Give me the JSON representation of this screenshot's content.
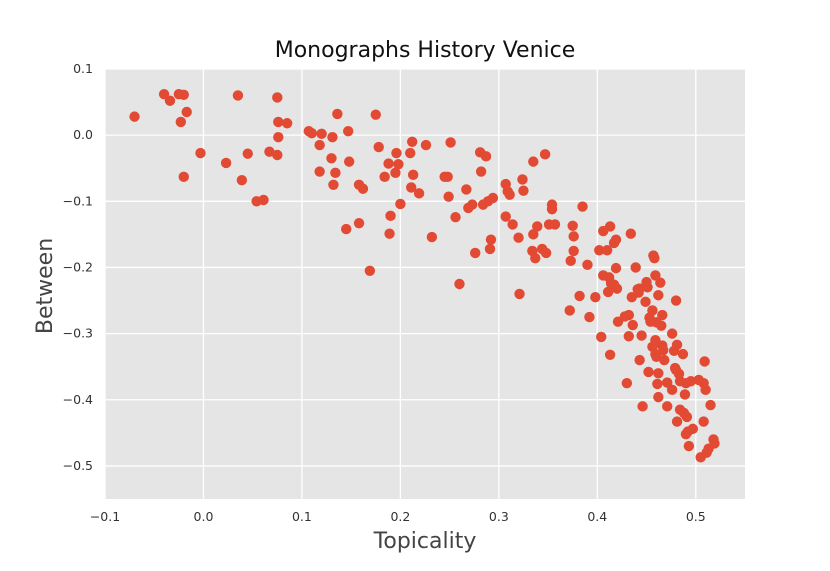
{
  "chart_data": {
    "type": "scatter",
    "title": "Monographs History Venice",
    "xlabel": "Topicality",
    "ylabel": "Between",
    "xlim": [
      -0.1,
      0.55
    ],
    "ylim": [
      -0.55,
      0.1
    ],
    "xticks": [
      -0.1,
      0.0,
      0.1,
      0.2,
      0.3,
      0.4,
      0.5
    ],
    "xtick_labels": [
      "−0.1",
      "0.0",
      "0.1",
      "0.2",
      "0.3",
      "0.4",
      "0.5"
    ],
    "yticks": [
      0.1,
      0.0,
      -0.1,
      -0.2,
      -0.3,
      -0.4,
      -0.5
    ],
    "ytick_labels": [
      "0.1",
      "0.0",
      "−0.1",
      "−0.2",
      "−0.3",
      "−0.4",
      "−0.5"
    ],
    "grid": true,
    "colors": {
      "background": "#e5e5e5",
      "grid": "#ffffff",
      "marker": "#e24a33"
    },
    "points": [
      [
        -0.07,
        0.028
      ],
      [
        -0.04,
        0.062
      ],
      [
        -0.034,
        0.052
      ],
      [
        -0.025,
        0.062
      ],
      [
        -0.02,
        0.061
      ],
      [
        -0.017,
        0.035
      ],
      [
        -0.023,
        0.02
      ],
      [
        -0.02,
        -0.063
      ],
      [
        -0.003,
        -0.027
      ],
      [
        0.023,
        -0.042
      ],
      [
        0.035,
        0.06
      ],
      [
        0.039,
        -0.068
      ],
      [
        0.045,
        -0.028
      ],
      [
        0.054,
        -0.1
      ],
      [
        0.061,
        -0.098
      ],
      [
        0.067,
        -0.025
      ],
      [
        0.075,
        0.057
      ],
      [
        0.076,
        0.02
      ],
      [
        0.076,
        -0.003
      ],
      [
        0.075,
        -0.03
      ],
      [
        0.085,
        0.018
      ],
      [
        0.107,
        0.006
      ],
      [
        0.11,
        0.003
      ],
      [
        0.118,
        -0.015
      ],
      [
        0.12,
        0.002
      ],
      [
        0.118,
        -0.055
      ],
      [
        0.13,
        -0.035
      ],
      [
        0.131,
        -0.003
      ],
      [
        0.132,
        -0.075
      ],
      [
        0.134,
        -0.057
      ],
      [
        0.136,
        0.032
      ],
      [
        0.145,
        -0.142
      ],
      [
        0.147,
        0.006
      ],
      [
        0.148,
        -0.04
      ],
      [
        0.158,
        -0.075
      ],
      [
        0.158,
        -0.133
      ],
      [
        0.162,
        -0.081
      ],
      [
        0.169,
        -0.205
      ],
      [
        0.175,
        0.031
      ],
      [
        0.178,
        -0.018
      ],
      [
        0.184,
        -0.063
      ],
      [
        0.188,
        -0.043
      ],
      [
        0.189,
        -0.149
      ],
      [
        0.19,
        -0.122
      ],
      [
        0.195,
        -0.057
      ],
      [
        0.196,
        -0.027
      ],
      [
        0.198,
        -0.044
      ],
      [
        0.2,
        -0.104
      ],
      [
        0.21,
        -0.027
      ],
      [
        0.211,
        -0.079
      ],
      [
        0.212,
        -0.01
      ],
      [
        0.213,
        -0.06
      ],
      [
        0.219,
        -0.088
      ],
      [
        0.226,
        -0.015
      ],
      [
        0.232,
        -0.154
      ],
      [
        0.245,
        -0.063
      ],
      [
        0.248,
        -0.063
      ],
      [
        0.249,
        -0.093
      ],
      [
        0.251,
        -0.011
      ],
      [
        0.256,
        -0.124
      ],
      [
        0.26,
        -0.225
      ],
      [
        0.267,
        -0.082
      ],
      [
        0.269,
        -0.11
      ],
      [
        0.273,
        -0.105
      ],
      [
        0.276,
        -0.178
      ],
      [
        0.281,
        -0.026
      ],
      [
        0.282,
        -0.055
      ],
      [
        0.284,
        -0.105
      ],
      [
        0.287,
        -0.032
      ],
      [
        0.289,
        -0.1
      ],
      [
        0.291,
        -0.172
      ],
      [
        0.292,
        -0.158
      ],
      [
        0.294,
        -0.095
      ],
      [
        0.307,
        -0.074
      ],
      [
        0.307,
        -0.123
      ],
      [
        0.309,
        -0.085
      ],
      [
        0.311,
        -0.09
      ],
      [
        0.314,
        -0.135
      ],
      [
        0.32,
        -0.155
      ],
      [
        0.321,
        -0.24
      ],
      [
        0.324,
        -0.067
      ],
      [
        0.325,
        -0.084
      ],
      [
        0.334,
        -0.175
      ],
      [
        0.335,
        -0.04
      ],
      [
        0.335,
        -0.15
      ],
      [
        0.337,
        -0.186
      ],
      [
        0.339,
        -0.138
      ],
      [
        0.344,
        -0.172
      ],
      [
        0.347,
        -0.029
      ],
      [
        0.348,
        -0.178
      ],
      [
        0.351,
        -0.135
      ],
      [
        0.354,
        -0.105
      ],
      [
        0.354,
        -0.112
      ],
      [
        0.357,
        -0.135
      ],
      [
        0.372,
        -0.265
      ],
      [
        0.373,
        -0.19
      ],
      [
        0.375,
        -0.137
      ],
      [
        0.376,
        -0.153
      ],
      [
        0.376,
        -0.175
      ],
      [
        0.382,
        -0.243
      ],
      [
        0.385,
        -0.108
      ],
      [
        0.39,
        -0.196
      ],
      [
        0.392,
        -0.275
      ],
      [
        0.398,
        -0.245
      ],
      [
        0.402,
        -0.174
      ],
      [
        0.404,
        -0.305
      ],
      [
        0.406,
        -0.145
      ],
      [
        0.406,
        -0.212
      ],
      [
        0.41,
        -0.174
      ],
      [
        0.411,
        -0.237
      ],
      [
        0.412,
        -0.215
      ],
      [
        0.413,
        -0.138
      ],
      [
        0.413,
        -0.332
      ],
      [
        0.414,
        -0.224
      ],
      [
        0.417,
        -0.163
      ],
      [
        0.417,
        -0.226
      ],
      [
        0.419,
        -0.201
      ],
      [
        0.419,
        -0.158
      ],
      [
        0.42,
        -0.232
      ],
      [
        0.421,
        -0.282
      ],
      [
        0.428,
        -0.274
      ],
      [
        0.43,
        -0.375
      ],
      [
        0.432,
        -0.304
      ],
      [
        0.432,
        -0.272
      ],
      [
        0.434,
        -0.149
      ],
      [
        0.435,
        -0.245
      ],
      [
        0.436,
        -0.287
      ],
      [
        0.439,
        -0.2
      ],
      [
        0.441,
        -0.233
      ],
      [
        0.442,
        -0.238
      ],
      [
        0.443,
        -0.232
      ],
      [
        0.443,
        -0.34
      ],
      [
        0.445,
        -0.303
      ],
      [
        0.446,
        -0.41
      ],
      [
        0.449,
        -0.252
      ],
      [
        0.45,
        -0.222
      ],
      [
        0.451,
        -0.23
      ],
      [
        0.452,
        -0.358
      ],
      [
        0.453,
        -0.276
      ],
      [
        0.454,
        -0.282
      ],
      [
        0.456,
        -0.32
      ],
      [
        0.456,
        -0.265
      ],
      [
        0.457,
        -0.182
      ],
      [
        0.458,
        -0.186
      ],
      [
        0.459,
        -0.331
      ],
      [
        0.459,
        -0.31
      ],
      [
        0.459,
        -0.212
      ],
      [
        0.46,
        -0.283
      ],
      [
        0.46,
        -0.335
      ],
      [
        0.461,
        -0.376
      ],
      [
        0.462,
        -0.396
      ],
      [
        0.462,
        -0.242
      ],
      [
        0.462,
        -0.36
      ],
      [
        0.464,
        -0.223
      ],
      [
        0.465,
        -0.288
      ],
      [
        0.466,
        -0.272
      ],
      [
        0.466,
        -0.318
      ],
      [
        0.467,
        -0.325
      ],
      [
        0.468,
        -0.34
      ],
      [
        0.471,
        -0.41
      ],
      [
        0.471,
        -0.374
      ],
      [
        0.476,
        -0.3
      ],
      [
        0.476,
        -0.385
      ],
      [
        0.478,
        -0.326
      ],
      [
        0.479,
        -0.352
      ],
      [
        0.48,
        -0.25
      ],
      [
        0.48,
        -0.355
      ],
      [
        0.481,
        -0.433
      ],
      [
        0.481,
        -0.317
      ],
      [
        0.483,
        -0.361
      ],
      [
        0.484,
        -0.372
      ],
      [
        0.484,
        -0.415
      ],
      [
        0.487,
        -0.331
      ],
      [
        0.488,
        -0.42
      ],
      [
        0.489,
        -0.392
      ],
      [
        0.49,
        -0.375
      ],
      [
        0.49,
        -0.452
      ],
      [
        0.491,
        -0.426
      ],
      [
        0.492,
        -0.448
      ],
      [
        0.493,
        -0.47
      ],
      [
        0.495,
        -0.372
      ],
      [
        0.497,
        -0.444
      ],
      [
        0.503,
        -0.37
      ],
      [
        0.505,
        -0.487
      ],
      [
        0.508,
        -0.375
      ],
      [
        0.508,
        -0.433
      ],
      [
        0.509,
        -0.342
      ],
      [
        0.51,
        -0.385
      ],
      [
        0.511,
        -0.48
      ],
      [
        0.513,
        -0.474
      ],
      [
        0.515,
        -0.408
      ],
      [
        0.518,
        -0.46
      ],
      [
        0.519,
        -0.466
      ]
    ]
  }
}
